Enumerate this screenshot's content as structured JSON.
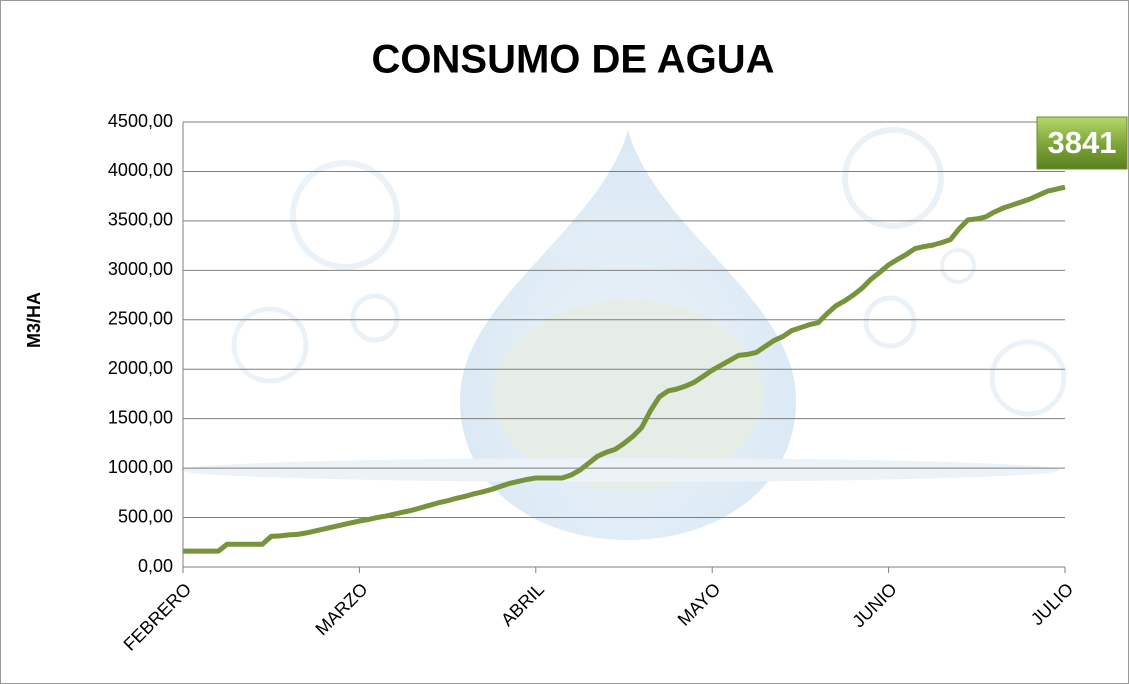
{
  "chart_data": {
    "type": "line",
    "title": "CONSUMO DE AGUA",
    "y_label": "M3/HA",
    "annotation": "3841",
    "categories": [
      "FEBRERO",
      null,
      null,
      null,
      null,
      null,
      null,
      null,
      null,
      null,
      null,
      null,
      null,
      null,
      null,
      null,
      null,
      null,
      null,
      null,
      "MARZO",
      null,
      null,
      null,
      null,
      null,
      null,
      null,
      null,
      null,
      null,
      null,
      null,
      null,
      null,
      null,
      null,
      null,
      null,
      null,
      "ABRIL",
      null,
      null,
      null,
      null,
      null,
      null,
      null,
      null,
      null,
      null,
      null,
      null,
      null,
      null,
      null,
      null,
      null,
      null,
      null,
      "MAYO",
      null,
      null,
      null,
      null,
      null,
      null,
      null,
      null,
      null,
      null,
      null,
      null,
      null,
      null,
      null,
      null,
      null,
      null,
      null,
      "JUNIO",
      null,
      null,
      null,
      null,
      null,
      null,
      null,
      null,
      null,
      null,
      null,
      null,
      null,
      null,
      null,
      null,
      null,
      null,
      null,
      "JULIO"
    ],
    "series": [
      {
        "name": "M3/HA",
        "color": "#77933c",
        "values": [
          160,
          160,
          160,
          160,
          160,
          230,
          230,
          230,
          230,
          230,
          310,
          315,
          325,
          330,
          345,
          365,
          385,
          405,
          425,
          445,
          465,
          480,
          500,
          515,
          535,
          555,
          575,
          600,
          625,
          650,
          670,
          695,
          715,
          740,
          760,
          785,
          815,
          845,
          865,
          885,
          900,
          900,
          900,
          900,
          930,
          980,
          1050,
          1120,
          1160,
          1190,
          1250,
          1320,
          1410,
          1580,
          1720,
          1780,
          1800,
          1830,
          1870,
          1930,
          1990,
          2040,
          2090,
          2140,
          2150,
          2170,
          2230,
          2290,
          2330,
          2390,
          2420,
          2450,
          2470,
          2560,
          2640,
          2690,
          2750,
          2820,
          2910,
          2980,
          3055,
          3110,
          3160,
          3220,
          3240,
          3255,
          3280,
          3310,
          3420,
          3510,
          3520,
          3540,
          3590,
          3630,
          3660,
          3690,
          3720,
          3760,
          3800,
          3820,
          3841
        ]
      }
    ],
    "ylim": [
      0,
      4500
    ],
    "yticks": [
      {
        "value": 0,
        "label": "0,00"
      },
      {
        "value": 500,
        "label": "500,00"
      },
      {
        "value": 1000,
        "label": "1000,00"
      },
      {
        "value": 1500,
        "label": "1500,00"
      },
      {
        "value": 2000,
        "label": "2000,00"
      },
      {
        "value": 2500,
        "label": "2500,00"
      },
      {
        "value": 3000,
        "label": "3000,00"
      },
      {
        "value": 3500,
        "label": "3500,00"
      },
      {
        "value": 4000,
        "label": "4000,00"
      },
      {
        "value": 4500,
        "label": "4500,00"
      }
    ],
    "grid": true
  }
}
